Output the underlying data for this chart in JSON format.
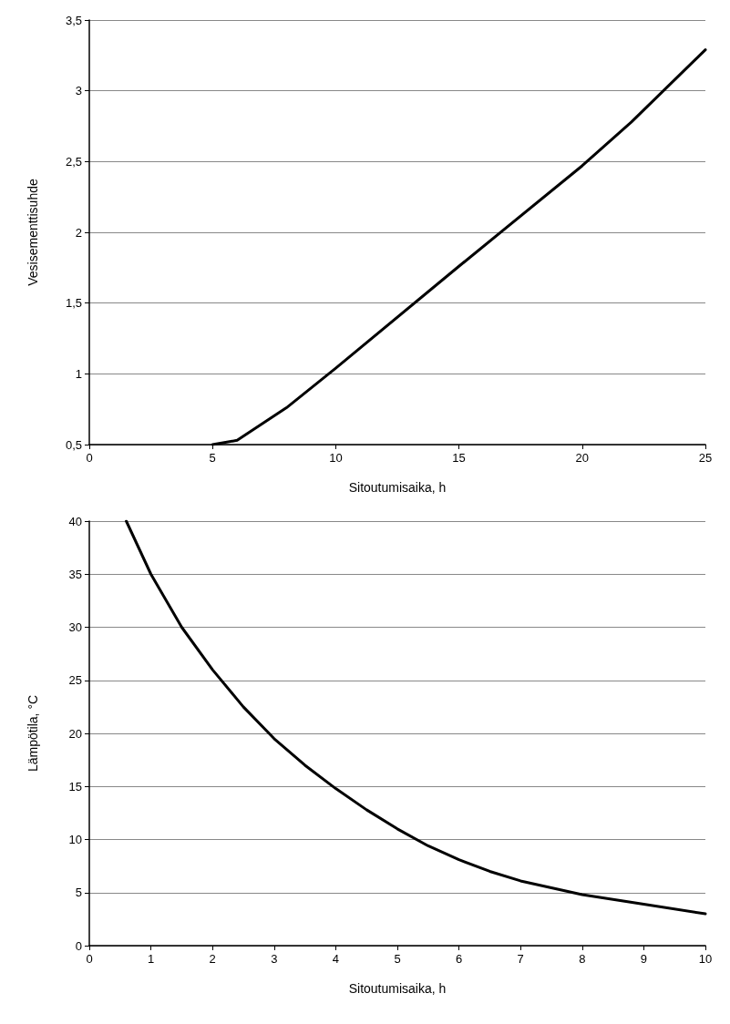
{
  "chart_data": [
    {
      "type": "line",
      "xlabel": "Sitoutumisaika, h",
      "ylabel": "Vesisementtisuhde",
      "x": [
        5,
        6,
        8,
        10,
        15,
        20,
        22,
        25
      ],
      "series": [
        {
          "color": "#000000",
          "values": [
            0.5,
            0.53,
            0.76,
            1.04,
            1.76,
            2.47,
            2.78,
            3.29
          ]
        }
      ],
      "xlim": [
        0,
        25
      ],
      "xticks": [
        0,
        5,
        10,
        15,
        20,
        25
      ],
      "ylim": [
        0.5,
        3.5
      ],
      "yticks": [
        {
          "value": 0.5,
          "label": "0,5"
        },
        1,
        {
          "value": 1.5,
          "label": "1,5"
        },
        2,
        {
          "value": 2.5,
          "label": "2,5"
        },
        3,
        {
          "value": 3.5,
          "label": "3,5"
        }
      ],
      "grid": "y",
      "marker": "none",
      "line_style": "solid"
    },
    {
      "type": "line",
      "xlabel": "Sitoutumisaika, h",
      "ylabel": "Lämpötila, °C",
      "x": [
        0.6,
        1,
        1.5,
        2,
        2.5,
        3,
        3.5,
        4,
        4.5,
        5,
        5.5,
        6,
        6.5,
        7,
        8,
        9,
        10
      ],
      "series": [
        {
          "color": "#000000",
          "values": [
            40,
            35,
            30,
            26,
            22.5,
            19.5,
            17,
            14.8,
            12.8,
            11,
            9.4,
            8.1,
            7,
            6.1,
            4.8,
            3.9,
            3
          ]
        }
      ],
      "xlim": [
        0,
        10
      ],
      "xticks": [
        0,
        1,
        2,
        3,
        4,
        5,
        6,
        7,
        8,
        9,
        10
      ],
      "ylim": [
        0,
        40
      ],
      "yticks": [
        0,
        5,
        10,
        15,
        20,
        25,
        30,
        35,
        40
      ],
      "grid": "y",
      "marker": "none",
      "line_style": "solid"
    }
  ]
}
